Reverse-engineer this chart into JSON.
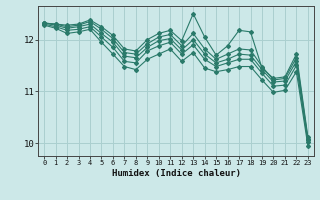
{
  "xlabel": "Humidex (Indice chaleur)",
  "bg_color": "#cce8e8",
  "grid_color": "#aacfcf",
  "line_color": "#2a7a6a",
  "xlim": [
    -0.5,
    23.5
  ],
  "ylim": [
    9.75,
    12.65
  ],
  "yticks": [
    10,
    11,
    12
  ],
  "xticks": [
    0,
    1,
    2,
    3,
    4,
    5,
    6,
    7,
    8,
    9,
    10,
    11,
    12,
    13,
    14,
    15,
    16,
    17,
    18,
    19,
    20,
    21,
    22,
    23
  ],
  "series": [
    [
      12.32,
      12.3,
      12.28,
      12.3,
      12.38,
      12.25,
      12.08,
      11.82,
      11.78,
      12.0,
      12.12,
      12.18,
      11.98,
      12.5,
      12.05,
      11.7,
      11.88,
      12.18,
      12.15,
      11.45,
      11.25,
      11.28,
      11.72,
      10.12
    ],
    [
      12.32,
      12.3,
      12.25,
      12.28,
      12.35,
      12.2,
      12.02,
      11.75,
      11.72,
      11.92,
      12.05,
      12.1,
      11.88,
      12.12,
      11.82,
      11.62,
      11.72,
      11.82,
      11.8,
      11.48,
      11.22,
      11.25,
      11.65,
      10.08
    ],
    [
      12.32,
      12.28,
      12.22,
      12.25,
      12.3,
      12.12,
      11.95,
      11.68,
      11.65,
      11.85,
      11.98,
      12.02,
      11.8,
      12.0,
      11.72,
      11.55,
      11.62,
      11.72,
      11.7,
      11.42,
      11.18,
      11.2,
      11.58,
      10.05
    ],
    [
      12.3,
      12.25,
      12.18,
      12.2,
      12.25,
      12.05,
      11.85,
      11.58,
      11.55,
      11.78,
      11.88,
      11.95,
      11.72,
      11.9,
      11.62,
      11.48,
      11.55,
      11.62,
      11.62,
      11.35,
      11.1,
      11.12,
      11.5,
      10.02
    ],
    [
      12.28,
      12.22,
      12.12,
      12.15,
      12.2,
      11.95,
      11.72,
      11.48,
      11.42,
      11.62,
      11.72,
      11.82,
      11.58,
      11.75,
      11.45,
      11.38,
      11.42,
      11.48,
      11.48,
      11.22,
      10.98,
      11.02,
      11.38,
      9.95
    ]
  ]
}
